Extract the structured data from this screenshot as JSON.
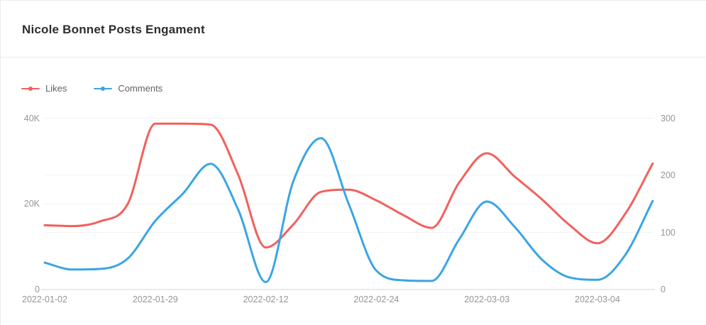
{
  "header": {
    "title": "Nicole Bonnet Posts Engament"
  },
  "legend": {
    "items": [
      {
        "label": "Likes",
        "color": "#f2605c"
      },
      {
        "label": "Comments",
        "color": "#3aa5e3"
      }
    ]
  },
  "chart_data": {
    "type": "line",
    "smooth": true,
    "grid_on": true,
    "legend_position": "top-left",
    "x_axis": {
      "type": "category",
      "visible_tick_labels": [
        "2022-01-02",
        "2022-01-29",
        "2022-02-12",
        "2022-02-24",
        "2022-03-03",
        "2022-03-04"
      ],
      "label_every_n_points": 4,
      "num_points": 23
    },
    "y_axis_left": {
      "min": 0,
      "max": 40000,
      "tick_labels": [
        "0",
        "20K",
        "40K"
      ],
      "label_color": "#929599"
    },
    "y_axis_right": {
      "min": 0,
      "max": 300,
      "tick_labels": [
        "0",
        "100",
        "200",
        "300"
      ],
      "label_color": "#929599"
    },
    "series": [
      {
        "name": "Likes",
        "axis": "left",
        "color": "#f2605c",
        "values": [
          15000,
          14800,
          15900,
          19900,
          38700,
          38700,
          38500,
          26800,
          9800,
          15200,
          22800,
          23300,
          20800,
          17300,
          14400,
          25000,
          31800,
          26400,
          21000,
          15000,
          10800,
          17600,
          29400
        ]
      },
      {
        "name": "Comments",
        "axis": "right",
        "color": "#3aa5e3",
        "values": [
          47,
          35,
          36,
          54,
          120,
          168,
          220,
          140,
          13,
          190,
          265,
          150,
          33,
          16,
          15,
          88,
          154,
          110,
          52,
          21,
          17,
          60,
          155
        ]
      }
    ],
    "style": {
      "line_width": 3,
      "grid_line_color": "#f0f0f0",
      "grid_line_color_secondary": "#f4f4f4",
      "axis_line_color": "#d6d6d6"
    }
  }
}
